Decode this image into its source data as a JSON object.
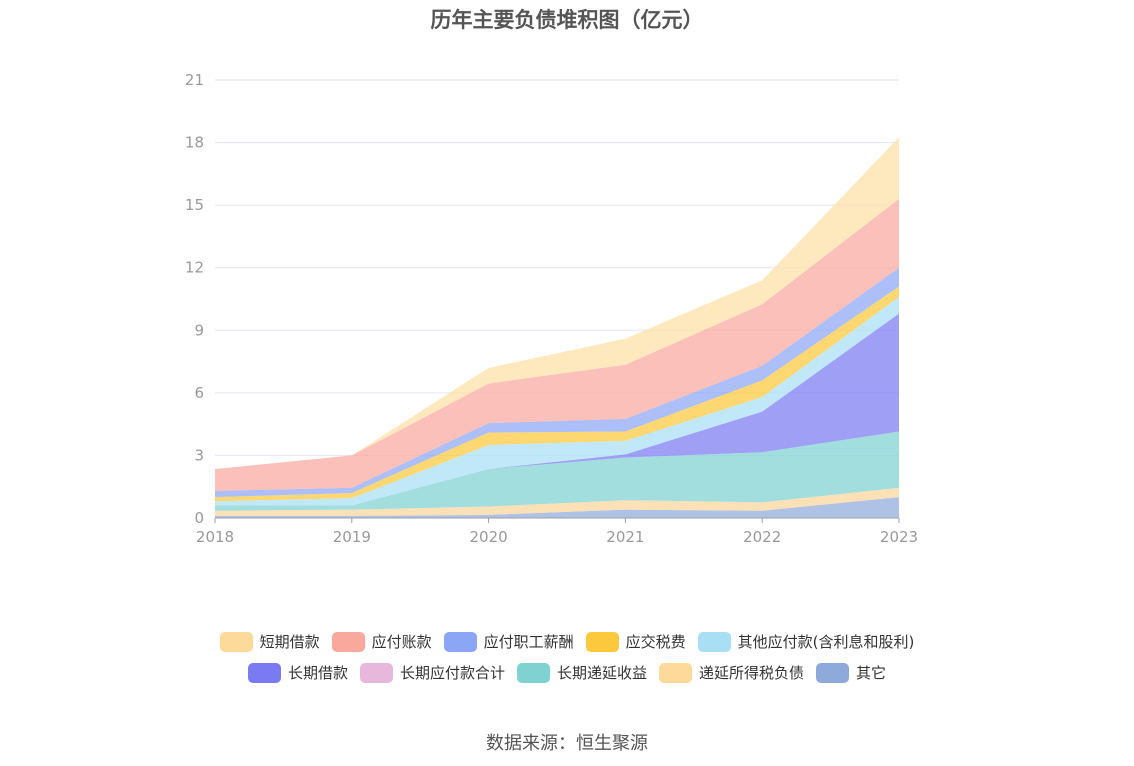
{
  "chart_data": {
    "type": "area",
    "title": "历年主要负债堆积图（亿元）",
    "stacked": true,
    "x": [
      "2018",
      "2019",
      "2020",
      "2021",
      "2022",
      "2023"
    ],
    "ylim": [
      0,
      21
    ],
    "yticks": [
      0,
      3,
      6,
      9,
      12,
      15,
      18,
      21
    ],
    "grid": true,
    "legend_position": "bottom",
    "series": [
      {
        "name": "其它",
        "color": "#8eaadb",
        "values": [
          0.1,
          0.1,
          0.15,
          0.4,
          0.35,
          1.0
        ]
      },
      {
        "name": "递延所得税负债",
        "color": "#fcd59a",
        "values": [
          0.25,
          0.3,
          0.4,
          0.45,
          0.4,
          0.45
        ]
      },
      {
        "name": "长期递延收益",
        "color": "#7fd1d2",
        "values": [
          0.25,
          0.2,
          1.8,
          2.05,
          2.4,
          2.7
        ]
      },
      {
        "name": "长期应付款合计",
        "color": "#e8b8dc",
        "values": [
          0.0,
          0.0,
          0.0,
          0.0,
          0.0,
          0.0
        ]
      },
      {
        "name": "长期借款",
        "color": "#7a7af2",
        "values": [
          0.0,
          0.0,
          0.0,
          0.15,
          1.95,
          5.65
        ]
      },
      {
        "name": "其他应付款(含利息和股利)",
        "color": "#a8dff5",
        "values": [
          0.2,
          0.35,
          1.15,
          0.65,
          0.7,
          0.8
        ]
      },
      {
        "name": "应交税费",
        "color": "#fcc93c",
        "values": [
          0.2,
          0.25,
          0.6,
          0.45,
          0.8,
          0.5
        ]
      },
      {
        "name": "应付职工薪酬",
        "color": "#8ca6f6",
        "values": [
          0.3,
          0.25,
          0.45,
          0.6,
          0.7,
          0.9
        ]
      },
      {
        "name": "应付账款",
        "color": "#f9a89e",
        "values": [
          1.05,
          1.55,
          1.9,
          2.6,
          2.95,
          3.3
        ]
      },
      {
        "name": "短期借款",
        "color": "#fde1a6",
        "values": [
          0.0,
          0.0,
          0.75,
          1.25,
          1.15,
          2.95
        ]
      }
    ]
  },
  "legend": {
    "row1": [
      {
        "label": "短期借款",
        "color": "#fdd99a"
      },
      {
        "label": "应付账款",
        "color": "#f9a89e"
      },
      {
        "label": "应付职工薪酬",
        "color": "#8ca6f6"
      },
      {
        "label": "应交税费",
        "color": "#fcc93c"
      },
      {
        "label": "其他应付款(含利息和股利)",
        "color": "#a8dff5"
      }
    ],
    "row2": [
      {
        "label": "长期借款",
        "color": "#7a7af2"
      },
      {
        "label": "长期应付款合计",
        "color": "#e8b8dc"
      },
      {
        "label": "长期递延收益",
        "color": "#7fd1d2"
      },
      {
        "label": "递延所得税负债",
        "color": "#fdd99a"
      },
      {
        "label": "其它",
        "color": "#8eaadb"
      }
    ]
  },
  "source_text": "数据来源：恒生聚源"
}
